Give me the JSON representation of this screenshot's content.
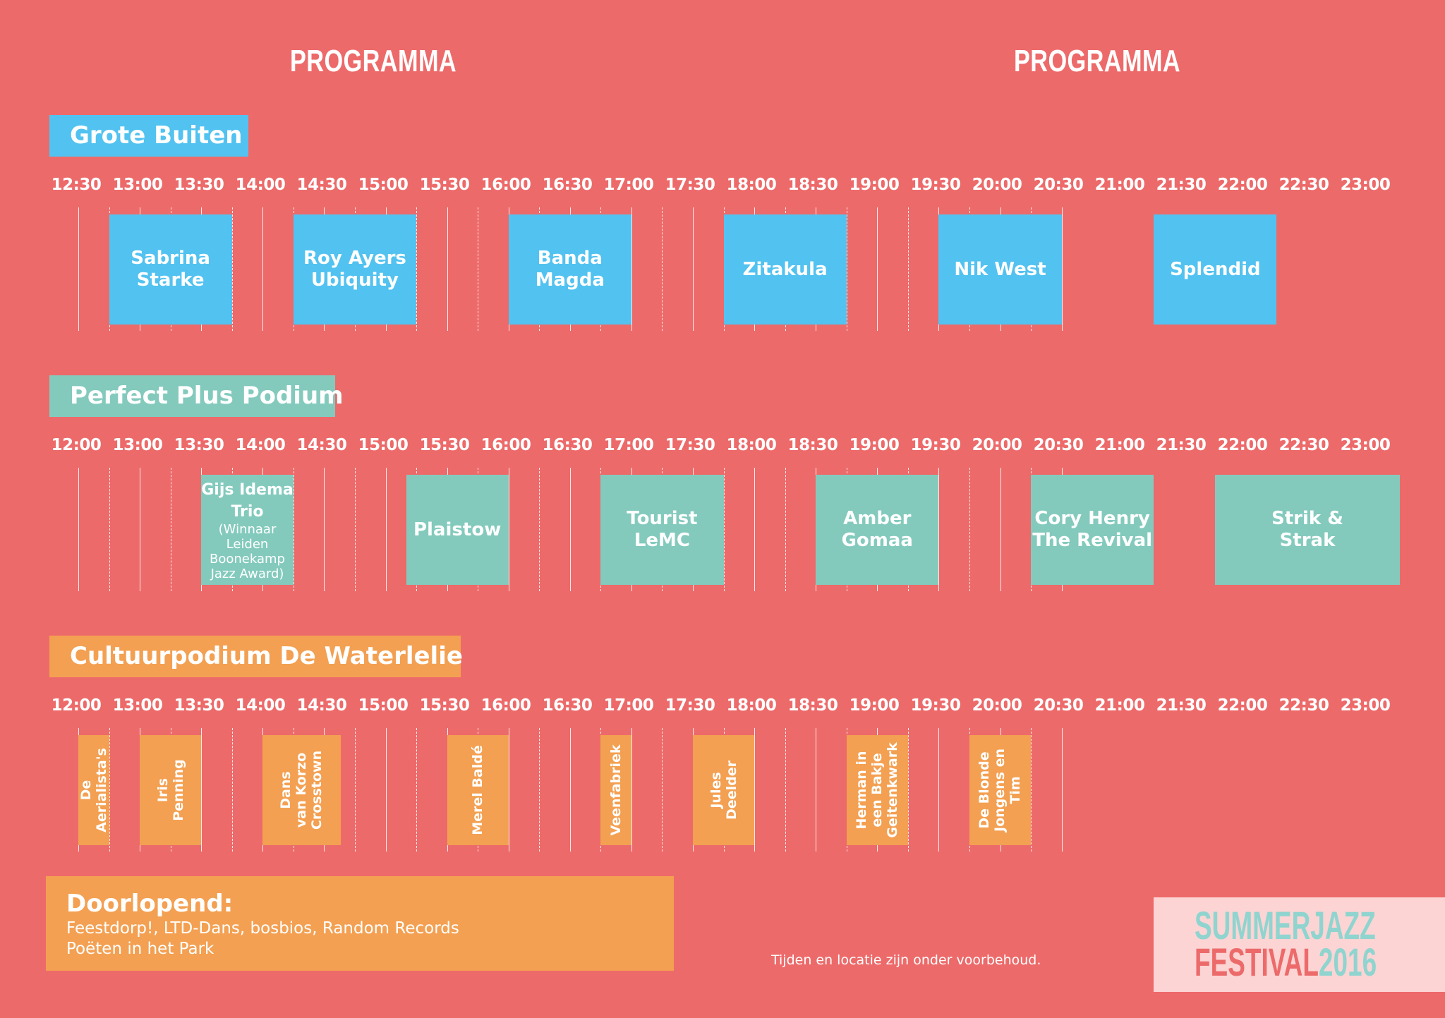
{
  "headings": [
    "PROGRAMMA",
    "PROGRAMMA"
  ],
  "colors": {
    "background": "#ed6a6a",
    "grote_buiten": "#52c2f0",
    "perfect_plus": "#83cabd",
    "waterlelie": "#f3a052",
    "doorlopend": "#f3a052",
    "logo_bg": "#fcd4d4",
    "logo_teal": "#8fd4cf",
    "logo_coral": "#ed6a6a"
  },
  "stages": [
    {
      "name": "Grote Buiten",
      "color": "#52c2f0",
      "times": [
        "12:30",
        "13:00",
        "13:30",
        "14:00",
        "14:30",
        "15:00",
        "15:30",
        "16:00",
        "16:30",
        "17:00",
        "17:30",
        "18:00",
        "18:30",
        "19:00",
        "19:30",
        "20:00",
        "20:30",
        "21:00",
        "21:30",
        "22:00",
        "22:30",
        "23:00"
      ],
      "acts": [
        {
          "name": "Sabrina\nStarke",
          "start": "12:30",
          "end": "13:30"
        },
        {
          "name": "Roy Ayers\nUbiquity",
          "start": "14:00",
          "end": "15:00"
        },
        {
          "name": "Banda\nMagda",
          "start": "15:45",
          "end": "16:45"
        },
        {
          "name": "Zitakula",
          "start": "17:30",
          "end": "18:30"
        },
        {
          "name": "Nik West",
          "start": "19:15",
          "end": "20:15"
        },
        {
          "name": "Splendid",
          "start": "21:00",
          "end": "22:00"
        }
      ]
    },
    {
      "name": "Perfect Plus Podium",
      "color": "#83cabd",
      "times": [
        "12:00",
        "13:00",
        "13:30",
        "14:00",
        "14:30",
        "15:00",
        "15:30",
        "16:00",
        "16:30",
        "17:00",
        "17:30",
        "18:00",
        "18:30",
        "19:00",
        "19:30",
        "20:00",
        "20:30",
        "21:00",
        "21:30",
        "22:00",
        "22:30",
        "23:00"
      ],
      "acts": [
        {
          "name": "Gijs Idema\nTrio",
          "sub": "(Winnaar\nLeiden\nBoonekamp\nJazz Award)",
          "start": "13:15",
          "end": "14:00",
          "small": true
        },
        {
          "name": "Plaistow",
          "start": "14:55",
          "end": "15:45"
        },
        {
          "name": "Tourist\nLeMC",
          "start": "16:30",
          "end": "17:30"
        },
        {
          "name": "Amber\nGomaa",
          "start": "18:15",
          "end": "19:15"
        },
        {
          "name": "Cory Henry\nThe Revival",
          "start": "20:00",
          "end": "21:00"
        },
        {
          "name": "Strik &\nStrak",
          "start": "21:30",
          "end": "23:00"
        }
      ]
    },
    {
      "name": "Cultuurpodium De Waterlelie",
      "color": "#f3a052",
      "times": [
        "12:00",
        "13:00",
        "13:30",
        "14:00",
        "14:30",
        "15:00",
        "15:30",
        "16:00",
        "16:30",
        "17:00",
        "17:30",
        "18:00",
        "18:30",
        "19:00",
        "19:30",
        "20:00",
        "20:30",
        "21:00",
        "21:30",
        "22:00",
        "22:30",
        "23:00"
      ],
      "acts": [
        {
          "name": "De Aerialista's",
          "start": "12:15",
          "end": "12:30",
          "vertical": true
        },
        {
          "name": "Iris\nPenning",
          "start": "12:45",
          "end": "13:15",
          "vertical": true
        },
        {
          "name": "Dans\nvan Korzo\nCrosstown",
          "start": "13:45",
          "end": "14:23",
          "vertical": true
        },
        {
          "name": "Merel Baldé",
          "start": "15:15",
          "end": "15:45",
          "vertical": true
        },
        {
          "name": "Veenfabriek",
          "start": "16:30",
          "end": "16:45",
          "vertical": true
        },
        {
          "name": "Jules\nDeelder",
          "start": "17:15",
          "end": "17:45",
          "vertical": true
        },
        {
          "name": "Herman in\neen Bakje\nGeitenkwark",
          "start": "18:30",
          "end": "19:00",
          "vertical": true
        },
        {
          "name": "De Blonde\nJongens en\nTim",
          "start": "19:30",
          "end": "20:00",
          "vertical": true
        }
      ]
    }
  ],
  "doorlopend": {
    "title": "Doorlopend:",
    "line1": "Feestdorp!, LTD-Dans, bosbios, Random Records",
    "line2": "Poëten in het Park"
  },
  "disclaimer": "Tijden en locatie zijn onder voorbehoud.",
  "logo": {
    "line1": "SUMMERJAZZ",
    "line2_a": "FESTIVAL",
    "line2_b": "2016"
  }
}
